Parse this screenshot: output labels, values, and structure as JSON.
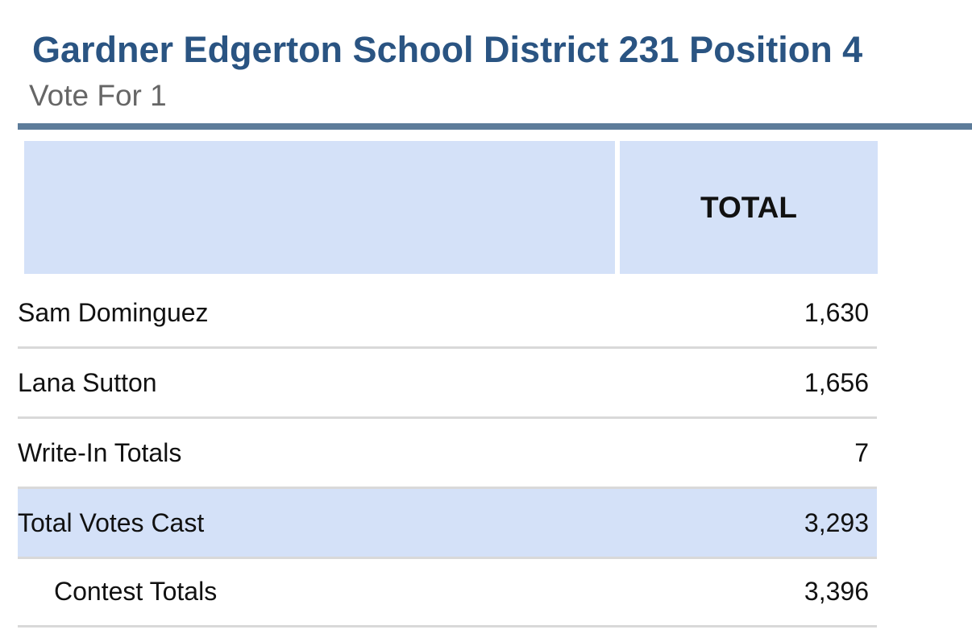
{
  "header": {
    "title": "Gardner Edgerton School District 231 Position 4",
    "subtitle": "Vote For 1"
  },
  "table": {
    "columns": [
      "TOTAL"
    ],
    "rows": [
      [
        "Sam Dominguez",
        "1,630"
      ],
      [
        "Lana Sutton",
        "1,656"
      ],
      [
        "Write-In Totals",
        "7"
      ],
      [
        "Total Votes Cast",
        "3,293"
      ],
      [
        "Contest Totals",
        "3,396"
      ]
    ]
  }
}
